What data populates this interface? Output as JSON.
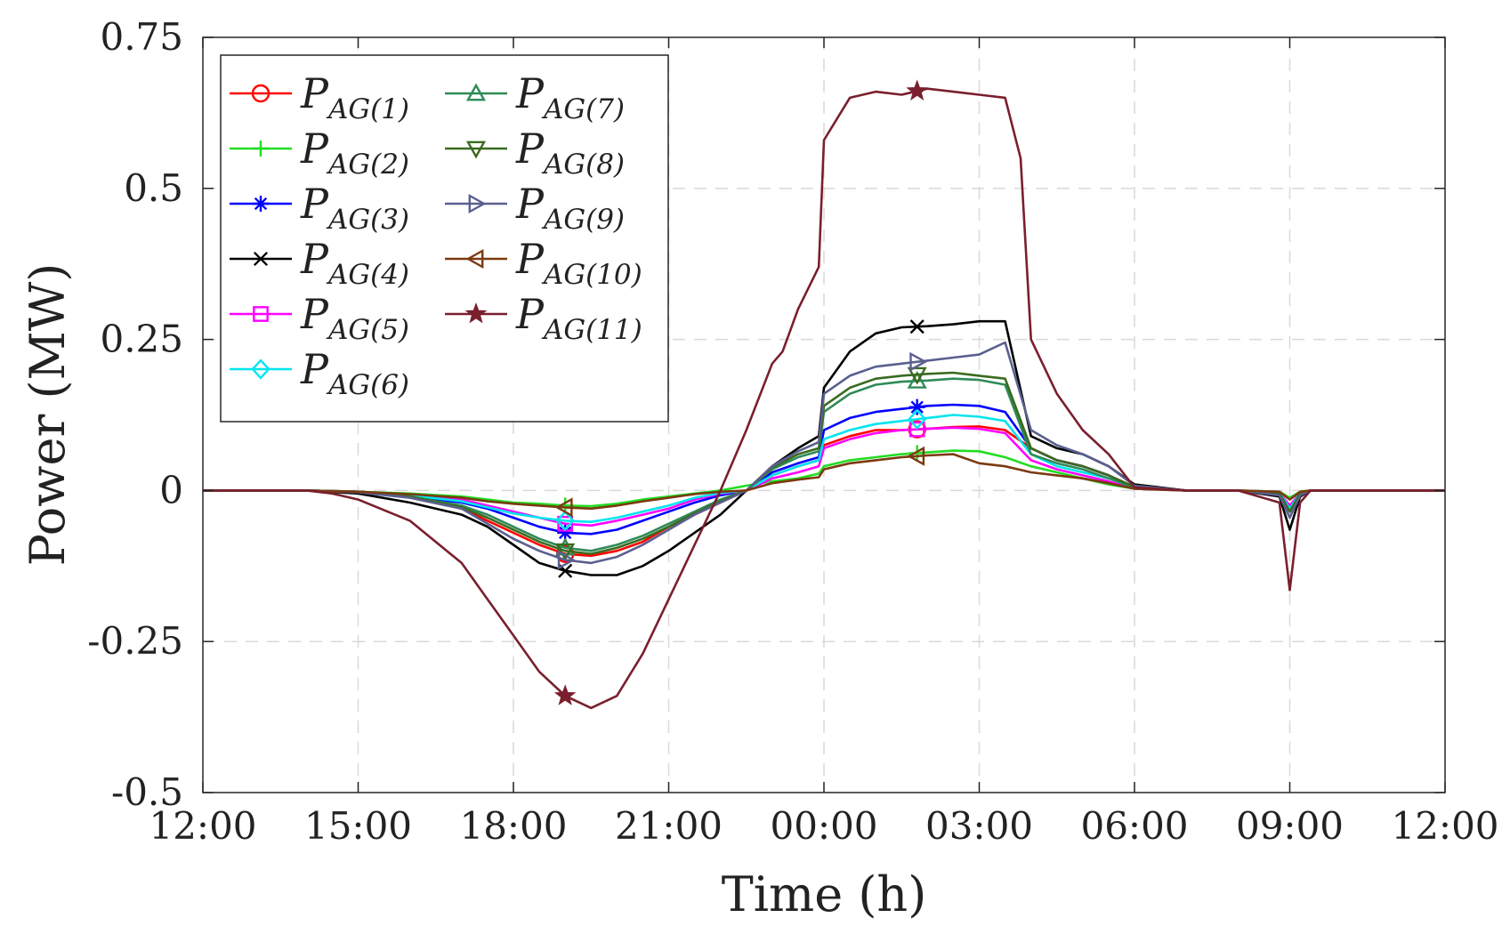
{
  "chart_data": {
    "type": "line",
    "title": "",
    "xlabel": "Time (h)",
    "ylabel": "Power (MW)",
    "xlim": [
      0,
      24
    ],
    "ylim": [
      -0.5,
      0.75
    ],
    "x_ticks": [
      {
        "value": 0,
        "label": "12:00"
      },
      {
        "value": 3,
        "label": "15:00"
      },
      {
        "value": 6,
        "label": "18:00"
      },
      {
        "value": 9,
        "label": "21:00"
      },
      {
        "value": 12,
        "label": "00:00"
      },
      {
        "value": 15,
        "label": "03:00"
      },
      {
        "value": 18,
        "label": "06:00"
      },
      {
        "value": 21,
        "label": "09:00"
      },
      {
        "value": 24,
        "label": "12:00"
      }
    ],
    "y_ticks": [
      {
        "value": 0.75,
        "label": "0.75"
      },
      {
        "value": 0.5,
        "label": "0.5"
      },
      {
        "value": 0.25,
        "label": "0.25"
      },
      {
        "value": 0,
        "label": "0"
      },
      {
        "value": -0.25,
        "label": "-0.25"
      },
      {
        "value": -0.5,
        "label": "-0.5"
      }
    ],
    "grid": true,
    "legend_position": "top-left",
    "marker_x": [
      7.0,
      13.8
    ],
    "series": [
      {
        "name": "P",
        "sub": "AG(1)",
        "color": "#ff0000",
        "marker": "circle",
        "x": [
          0,
          2,
          3,
          4,
          5,
          5.5,
          6,
          6.5,
          7,
          7.5,
          8,
          8.5,
          9,
          9.5,
          10,
          10.5,
          11,
          11.5,
          11.9,
          12,
          12.5,
          13,
          13.5,
          14,
          14.5,
          15,
          15.5,
          16,
          16.5,
          17,
          17.5,
          18,
          19,
          20,
          20.8,
          21,
          21.2,
          21.4,
          22,
          24
        ],
        "y": [
          0,
          0,
          -0.002,
          -0.01,
          -0.03,
          -0.05,
          -0.07,
          -0.09,
          -0.105,
          -0.108,
          -0.1,
          -0.085,
          -0.06,
          -0.04,
          -0.02,
          0,
          0.025,
          0.04,
          0.05,
          0.075,
          0.09,
          0.1,
          0.1,
          0.102,
          0.105,
          0.106,
          0.1,
          0.07,
          0.05,
          0.04,
          0.025,
          0.005,
          0,
          0,
          -0.005,
          -0.035,
          -0.005,
          0,
          0,
          0
        ]
      },
      {
        "name": "P",
        "sub": "AG(2)",
        "color": "#22dd22",
        "marker": "plus",
        "x": [
          0,
          2,
          3,
          4,
          5,
          5.5,
          6,
          6.5,
          7,
          7.5,
          8,
          8.5,
          9,
          9.5,
          10,
          10.5,
          11,
          11.5,
          11.9,
          12,
          12.5,
          13,
          13.5,
          14,
          14.5,
          15,
          15.5,
          16,
          16.5,
          17,
          17.5,
          18,
          19,
          20,
          20.8,
          21,
          21.2,
          21.4,
          22,
          24
        ],
        "y": [
          0,
          0,
          -0.002,
          -0.005,
          -0.01,
          -0.015,
          -0.02,
          -0.022,
          -0.025,
          -0.026,
          -0.022,
          -0.015,
          -0.01,
          -0.005,
          0,
          0.008,
          0.015,
          0.02,
          0.028,
          0.04,
          0.05,
          0.055,
          0.06,
          0.063,
          0.066,
          0.065,
          0.055,
          0.04,
          0.03,
          0.02,
          0.01,
          0.003,
          0,
          0,
          -0.002,
          -0.012,
          -0.002,
          0,
          0,
          0
        ]
      },
      {
        "name": "P",
        "sub": "AG(3)",
        "color": "#0000ff",
        "marker": "asterisk",
        "x": [
          0,
          2,
          3,
          4,
          5,
          5.5,
          6,
          6.5,
          7,
          7.5,
          8,
          8.5,
          9,
          9.5,
          10,
          10.5,
          11,
          11.5,
          11.9,
          12,
          12.5,
          13,
          13.5,
          14,
          14.5,
          15,
          15.5,
          16,
          16.5,
          17,
          17.5,
          18,
          19,
          20,
          20.8,
          21,
          21.2,
          21.4,
          22,
          24
        ],
        "y": [
          0,
          0,
          -0.002,
          -0.01,
          -0.02,
          -0.03,
          -0.045,
          -0.06,
          -0.07,
          -0.072,
          -0.065,
          -0.05,
          -0.035,
          -0.02,
          -0.008,
          0,
          0.03,
          0.045,
          0.055,
          0.1,
          0.12,
          0.13,
          0.135,
          0.14,
          0.142,
          0.14,
          0.13,
          0.07,
          0.05,
          0.04,
          0.025,
          0.005,
          0,
          0,
          -0.005,
          -0.03,
          -0.005,
          0,
          0,
          0
        ]
      },
      {
        "name": "P",
        "sub": "AG(4)",
        "color": "#000000",
        "marker": "x",
        "x": [
          0,
          2,
          3,
          4,
          5,
          5.5,
          6,
          6.5,
          7,
          7.5,
          8,
          8.5,
          9,
          9.5,
          10,
          10.5,
          11,
          11.5,
          11.9,
          12,
          12.5,
          13,
          13.5,
          14,
          14.5,
          15,
          15.5,
          16,
          16.5,
          17,
          17.5,
          18,
          19,
          20,
          20.8,
          21,
          21.2,
          21.4,
          22,
          24
        ],
        "y": [
          0,
          0,
          -0.005,
          -0.02,
          -0.04,
          -0.06,
          -0.09,
          -0.12,
          -0.133,
          -0.14,
          -0.14,
          -0.125,
          -0.1,
          -0.07,
          -0.04,
          0,
          0.04,
          0.07,
          0.09,
          0.17,
          0.23,
          0.26,
          0.27,
          0.272,
          0.275,
          0.28,
          0.28,
          0.09,
          0.07,
          0.06,
          0.04,
          0.01,
          0,
          0,
          -0.01,
          -0.065,
          -0.01,
          0,
          0,
          0
        ]
      },
      {
        "name": "P",
        "sub": "AG(5)",
        "color": "#ff00ff",
        "marker": "square",
        "x": [
          0,
          2,
          3,
          4,
          5,
          5.5,
          6,
          6.5,
          7,
          7.5,
          8,
          8.5,
          9,
          9.5,
          10,
          10.5,
          11,
          11.5,
          11.9,
          12,
          12.5,
          13,
          13.5,
          14,
          14.5,
          15,
          15.5,
          16,
          16.5,
          17,
          17.5,
          18,
          19,
          20,
          20.8,
          21,
          21.2,
          21.4,
          22,
          24
        ],
        "y": [
          0,
          0,
          -0.002,
          -0.008,
          -0.015,
          -0.025,
          -0.035,
          -0.045,
          -0.055,
          -0.058,
          -0.05,
          -0.04,
          -0.03,
          -0.015,
          -0.005,
          0,
          0.02,
          0.03,
          0.04,
          0.07,
          0.085,
          0.095,
          0.1,
          0.102,
          0.104,
          0.102,
          0.095,
          0.05,
          0.035,
          0.025,
          0.015,
          0.003,
          0,
          0,
          -0.004,
          -0.025,
          -0.004,
          0,
          0,
          0
        ]
      },
      {
        "name": "P",
        "sub": "AG(6)",
        "color": "#00e5ee",
        "marker": "diamond",
        "x": [
          0,
          2,
          3,
          4,
          5,
          5.5,
          6,
          6.5,
          7,
          7.5,
          8,
          8.5,
          9,
          9.5,
          10,
          10.5,
          11,
          11.5,
          11.9,
          12,
          12.5,
          13,
          13.5,
          14,
          14.5,
          15,
          15.5,
          16,
          16.5,
          17,
          17.5,
          18,
          19,
          20,
          20.8,
          21,
          21.2,
          21.4,
          22,
          24
        ],
        "y": [
          0,
          0,
          -0.002,
          -0.008,
          -0.018,
          -0.028,
          -0.038,
          -0.045,
          -0.05,
          -0.052,
          -0.045,
          -0.035,
          -0.025,
          -0.012,
          -0.004,
          0,
          0.025,
          0.04,
          0.05,
          0.085,
          0.1,
          0.11,
          0.115,
          0.12,
          0.125,
          0.122,
          0.115,
          0.06,
          0.04,
          0.03,
          0.02,
          0.005,
          0,
          0,
          -0.004,
          -0.03,
          -0.004,
          0,
          0,
          0
        ]
      },
      {
        "name": "P",
        "sub": "AG(7)",
        "color": "#2e8b57",
        "marker": "triangle-up",
        "x": [
          0,
          2,
          3,
          4,
          5,
          5.5,
          6,
          6.5,
          7,
          7.5,
          8,
          8.5,
          9,
          9.5,
          10,
          10.5,
          11,
          11.5,
          11.9,
          12,
          12.5,
          13,
          13.5,
          14,
          14.5,
          15,
          15.5,
          16,
          16.5,
          17,
          17.5,
          18,
          19,
          20,
          20.8,
          21,
          21.2,
          21.4,
          22,
          24
        ],
        "y": [
          0,
          0,
          -0.002,
          -0.01,
          -0.025,
          -0.04,
          -0.06,
          -0.08,
          -0.095,
          -0.1,
          -0.09,
          -0.075,
          -0.055,
          -0.035,
          -0.015,
          0,
          0.035,
          0.055,
          0.065,
          0.13,
          0.16,
          0.175,
          0.18,
          0.182,
          0.185,
          0.183,
          0.175,
          0.06,
          0.045,
          0.035,
          0.02,
          0.005,
          0,
          0,
          -0.005,
          -0.035,
          -0.005,
          0,
          0,
          0
        ]
      },
      {
        "name": "P",
        "sub": "AG(8)",
        "color": "#3a6b1f",
        "marker": "triangle-down",
        "x": [
          0,
          2,
          3,
          4,
          5,
          5.5,
          6,
          6.5,
          7,
          7.5,
          8,
          8.5,
          9,
          9.5,
          10,
          10.5,
          11,
          11.5,
          11.9,
          12,
          12.5,
          13,
          13.5,
          14,
          14.5,
          15,
          15.5,
          16,
          16.5,
          17,
          17.5,
          18,
          19,
          20,
          20.8,
          21,
          21.2,
          21.4,
          22,
          24
        ],
        "y": [
          0,
          0,
          -0.002,
          -0.01,
          -0.028,
          -0.045,
          -0.065,
          -0.085,
          -0.1,
          -0.105,
          -0.095,
          -0.08,
          -0.06,
          -0.038,
          -0.018,
          0,
          0.038,
          0.06,
          0.07,
          0.14,
          0.17,
          0.185,
          0.19,
          0.193,
          0.195,
          0.19,
          0.185,
          0.07,
          0.05,
          0.04,
          0.025,
          0.006,
          0,
          0,
          -0.005,
          -0.035,
          -0.005,
          0,
          0,
          0
        ]
      },
      {
        "name": "P",
        "sub": "AG(9)",
        "color": "#5a5f8f",
        "marker": "triangle-right",
        "x": [
          0,
          2,
          3,
          4,
          5,
          5.5,
          6,
          6.5,
          7,
          7.5,
          8,
          8.5,
          9,
          9.5,
          10,
          10.5,
          11,
          11.5,
          11.9,
          12,
          12.5,
          13,
          13.5,
          14,
          14.5,
          15,
          15.5,
          16,
          16.5,
          17,
          17.5,
          18,
          19,
          20,
          20.8,
          21,
          21.2,
          21.4,
          22,
          24
        ],
        "y": [
          0,
          0,
          -0.003,
          -0.012,
          -0.03,
          -0.055,
          -0.08,
          -0.1,
          -0.115,
          -0.12,
          -0.11,
          -0.09,
          -0.065,
          -0.04,
          -0.02,
          0,
          0.04,
          0.065,
          0.08,
          0.16,
          0.19,
          0.205,
          0.21,
          0.215,
          0.22,
          0.225,
          0.245,
          0.1,
          0.075,
          0.06,
          0.04,
          0.008,
          0,
          0,
          -0.008,
          -0.045,
          -0.008,
          0,
          0,
          0
        ]
      },
      {
        "name": "P",
        "sub": "AG(10)",
        "color": "#7b3a10",
        "marker": "triangle-left",
        "x": [
          0,
          2,
          3,
          4,
          5,
          5.5,
          6,
          6.5,
          7,
          7.5,
          8,
          8.5,
          9,
          9.5,
          10,
          10.5,
          11,
          11.5,
          11.9,
          12,
          12.5,
          13,
          13.5,
          14,
          14.5,
          15,
          15.5,
          16,
          16.5,
          17,
          17.5,
          18,
          19,
          20,
          20.8,
          21,
          21.2,
          21.4,
          22,
          24
        ],
        "y": [
          0,
          0,
          -0.002,
          -0.006,
          -0.012,
          -0.018,
          -0.022,
          -0.025,
          -0.028,
          -0.03,
          -0.025,
          -0.018,
          -0.012,
          -0.006,
          -0.002,
          0,
          0.012,
          0.018,
          0.022,
          0.035,
          0.045,
          0.05,
          0.055,
          0.058,
          0.06,
          0.045,
          0.04,
          0.03,
          0.025,
          0.02,
          0.012,
          0.003,
          0,
          0,
          -0.002,
          -0.015,
          -0.002,
          0,
          0,
          0
        ]
      },
      {
        "name": "P",
        "sub": "AG(11)",
        "color": "#7a1f2e",
        "marker": "star",
        "x": [
          0,
          2,
          2.5,
          3,
          4,
          5,
          5.5,
          6,
          6.5,
          7,
          7.5,
          8,
          8.5,
          9,
          9.5,
          10,
          10.5,
          11,
          11.2,
          11.5,
          11.9,
          12,
          12.5,
          13,
          13.5,
          14,
          14.5,
          15,
          15.5,
          15.8,
          16,
          16.5,
          17,
          17.5,
          18,
          19,
          20,
          20.8,
          21,
          21.2,
          21.4,
          22,
          24
        ],
        "y": [
          0,
          0,
          -0.005,
          -0.015,
          -0.05,
          -0.12,
          -0.18,
          -0.24,
          -0.3,
          -0.34,
          -0.36,
          -0.34,
          -0.27,
          -0.18,
          -0.09,
          0,
          0.1,
          0.21,
          0.23,
          0.3,
          0.37,
          0.58,
          0.65,
          0.66,
          0.655,
          0.665,
          0.66,
          0.655,
          0.65,
          0.55,
          0.25,
          0.16,
          0.1,
          0.06,
          0.005,
          0,
          0,
          -0.02,
          -0.165,
          -0.02,
          0,
          0,
          0
        ]
      }
    ]
  }
}
